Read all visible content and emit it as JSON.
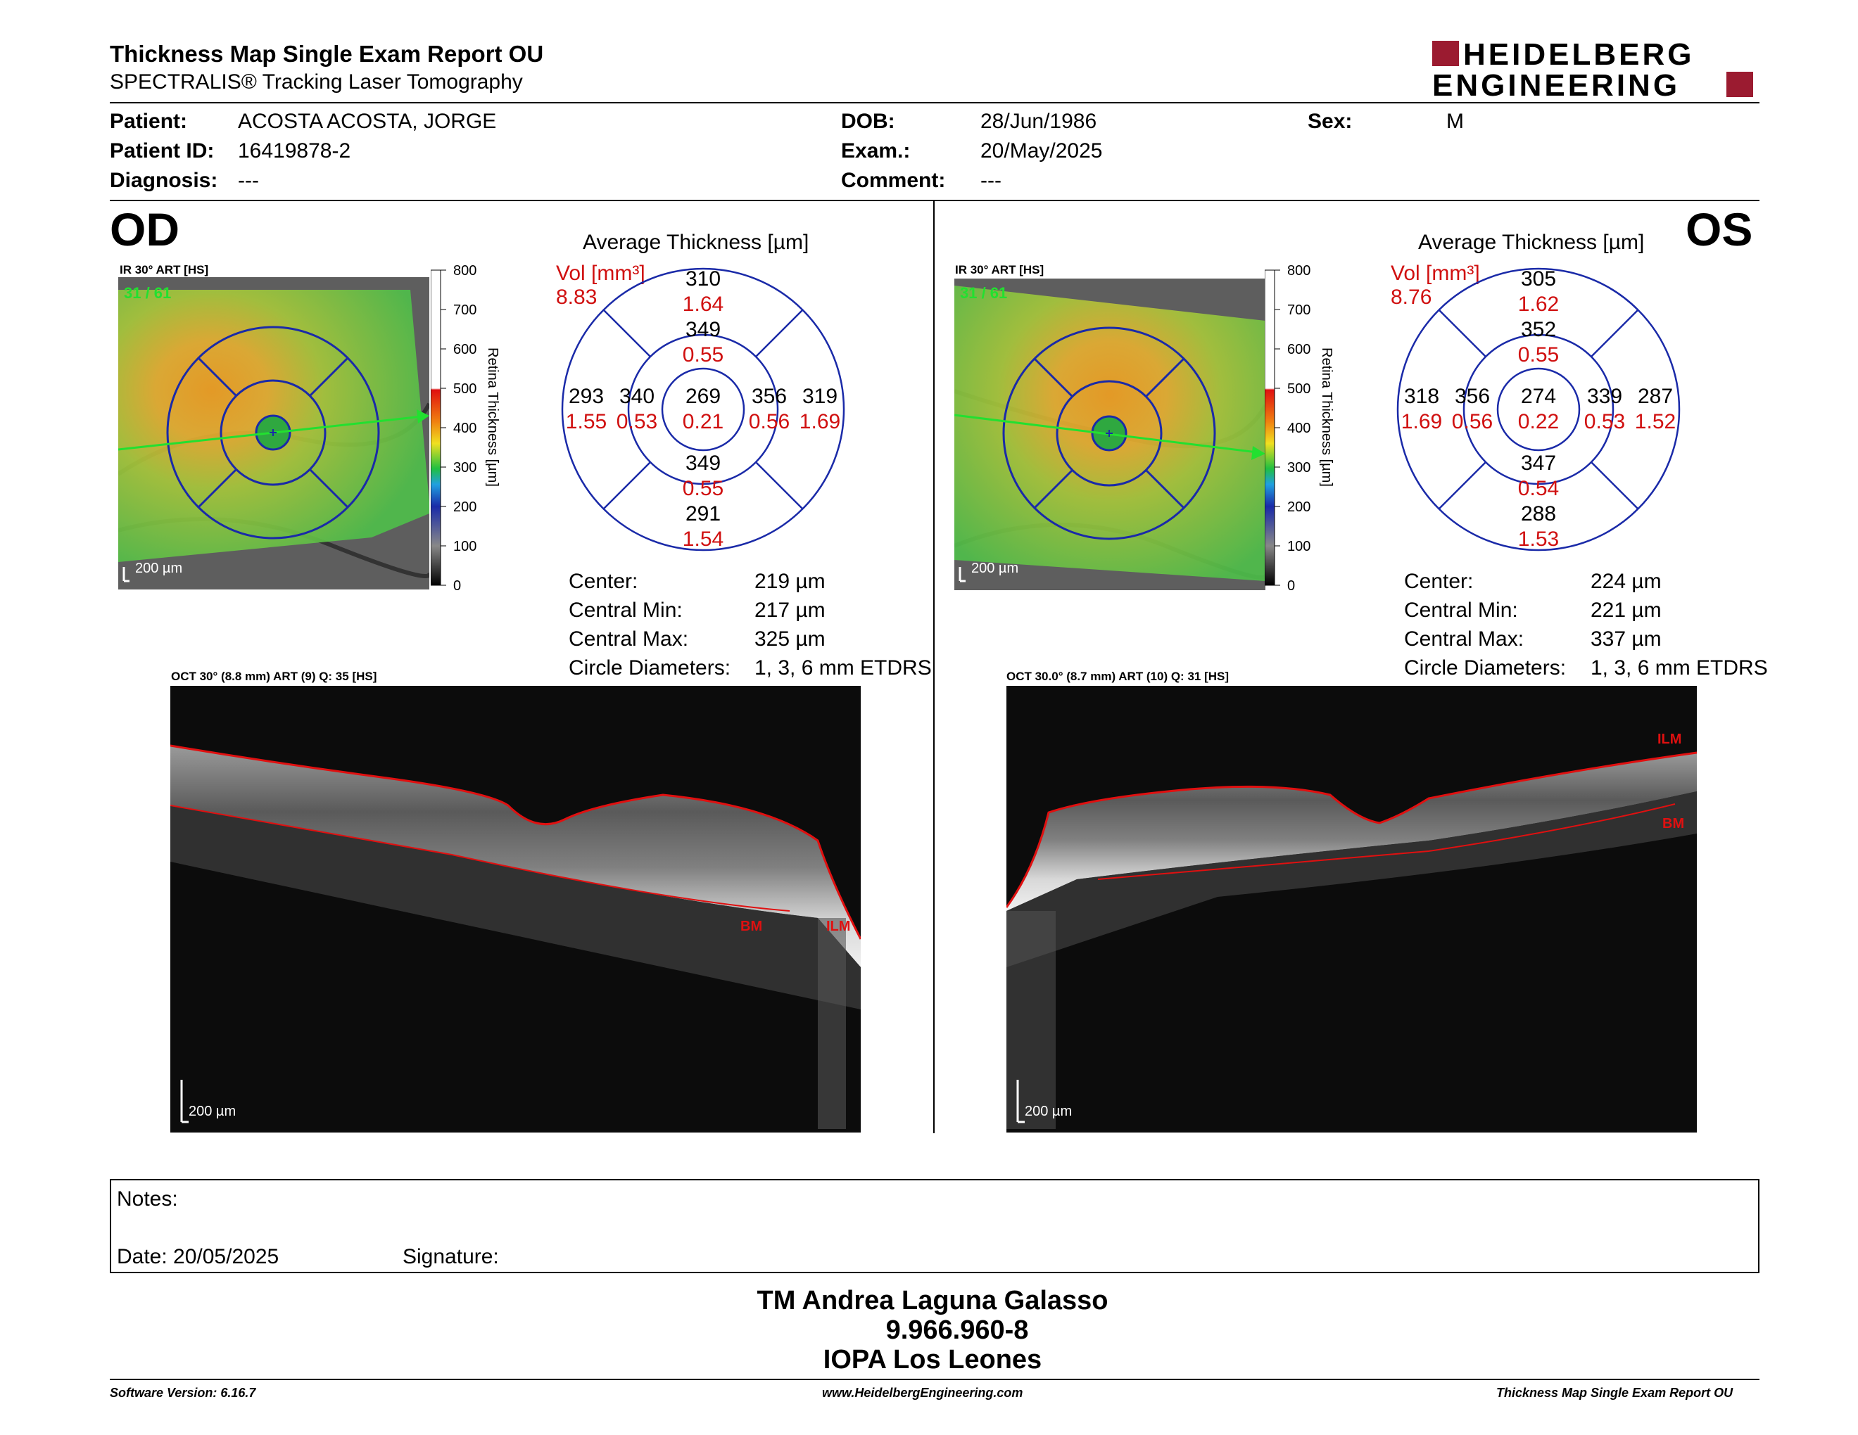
{
  "report": {
    "title": "Thickness Map Single Exam Report OU",
    "subtitle": "SPECTRALIS® Tracking Laser Tomography",
    "logo_line1": "HEIDELBERG",
    "logo_line2": "ENGINEERING",
    "brand_color": "#9b1b30"
  },
  "patient": {
    "patient_label": "Patient:",
    "patient_value": "ACOSTA ACOSTA, JORGE",
    "id_label": "Patient ID:",
    "id_value": "16419878-2",
    "diagnosis_label": "Diagnosis:",
    "diagnosis_value": "---",
    "dob_label": "DOB:",
    "dob_value": "28/Jun/1986",
    "exam_label": "Exam.:",
    "exam_value": "20/May/2025",
    "comment_label": "Comment:",
    "comment_value": "---",
    "sex_label": "Sex:",
    "sex_value": "M"
  },
  "od": {
    "eye": "OD",
    "ir_label": "IR 30° ART [HS]",
    "ir_counter": "31 / 61",
    "scale_label": "200 µm",
    "colorbar_ticks": [
      "800",
      "700",
      "600",
      "500",
      "400",
      "300",
      "200",
      "100",
      "0"
    ],
    "colorbar_title": "Retina Thickness [µm]",
    "avg_title": "Average Thickness [µm]",
    "vol_label": "Vol [mm³]",
    "vol_value": "8.83",
    "grid": {
      "center": {
        "t": "269",
        "v": "0.21"
      },
      "inner_sup": {
        "t": "349",
        "v": "0.55"
      },
      "inner_inf": {
        "t": "349",
        "v": "0.55"
      },
      "inner_left": {
        "t": "340",
        "v": "0.53"
      },
      "inner_right": {
        "t": "356",
        "v": "0.56"
      },
      "outer_sup": {
        "t": "310",
        "v": "1.64"
      },
      "outer_inf": {
        "t": "291",
        "v": "1.54"
      },
      "outer_left": {
        "t": "293",
        "v": "1.55"
      },
      "outer_right": {
        "t": "319",
        "v": "1.69"
      }
    },
    "stats": [
      {
        "label": "Center:",
        "value": "219 µm"
      },
      {
        "label": "Central Min:",
        "value": "217 µm"
      },
      {
        "label": "Central Max:",
        "value": "325 µm"
      },
      {
        "label": "Circle Diameters:",
        "value": "1, 3, 6 mm ETDRS"
      }
    ],
    "oct_label": "OCT 30° (8.8 mm) ART (9) Q: 35 [HS]",
    "oct_scale": "200 µm",
    "bm_label": "BM",
    "ilm_label": "ILM"
  },
  "os": {
    "eye": "OS",
    "ir_label": "IR 30° ART [HS]",
    "ir_counter": "31 / 61",
    "scale_label": "200 µm",
    "colorbar_ticks": [
      "800",
      "700",
      "600",
      "500",
      "400",
      "300",
      "200",
      "100",
      "0"
    ],
    "colorbar_title": "Retina Thickness [µm]",
    "avg_title": "Average Thickness [µm]",
    "vol_label": "Vol [mm³]",
    "vol_value": "8.76",
    "grid": {
      "center": {
        "t": "274",
        "v": "0.22"
      },
      "inner_sup": {
        "t": "352",
        "v": "0.55"
      },
      "inner_inf": {
        "t": "347",
        "v": "0.54"
      },
      "inner_left": {
        "t": "356",
        "v": "0.56"
      },
      "inner_right": {
        "t": "339",
        "v": "0.53"
      },
      "outer_sup": {
        "t": "305",
        "v": "1.62"
      },
      "outer_inf": {
        "t": "288",
        "v": "1.53"
      },
      "outer_left": {
        "t": "318",
        "v": "1.69"
      },
      "outer_right": {
        "t": "287",
        "v": "1.52"
      }
    },
    "stats": [
      {
        "label": "Center:",
        "value": "224 µm"
      },
      {
        "label": "Central Min:",
        "value": "221 µm"
      },
      {
        "label": "Central Max:",
        "value": "337 µm"
      },
      {
        "label": "Circle Diameters:",
        "value": "1, 3, 6 mm ETDRS"
      }
    ],
    "oct_label": "OCT 30.0° (8.7 mm) ART (10) Q: 31 [HS]",
    "oct_scale": "200 µm",
    "bm_label": "BM",
    "ilm_label": "ILM"
  },
  "notes": {
    "notes_label": "Notes:",
    "date_label": "Date: 20/05/2025",
    "signature_label": "Signature:"
  },
  "signature": {
    "name": "TM Andrea Laguna Galasso",
    "id": "9.966.960-8",
    "org": "IOPA Los Leones"
  },
  "footer": {
    "software": "Software Version: 6.16.7",
    "website": "www.HeidelbergEngineering.com",
    "report": "Thickness Map Single Exam Report OU"
  },
  "colors": {
    "grid_blue": "#1a2aa8",
    "volume_red": "#d01010",
    "scan_green": "#22e030",
    "layer_red": "#e01010"
  }
}
